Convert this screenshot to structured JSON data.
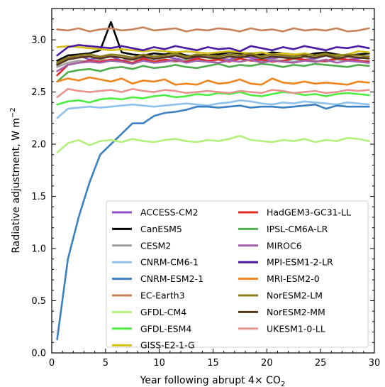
{
  "chart_data": {
    "type": "line",
    "xlabel": "Year following abrupt 4× CO",
    "xlabel_sub": "2",
    "ylabel": "Radiative adjustment, W m",
    "ylabel_sup": "−2",
    "xlim": [
      0,
      30
    ],
    "ylim": [
      0,
      3.3
    ],
    "x_ticks": [
      0,
      5,
      10,
      15,
      20,
      25,
      30
    ],
    "y_ticks": [
      0.0,
      0.5,
      1.0,
      1.5,
      2.0,
      2.5,
      3.0
    ],
    "x_tick_labels": [
      "0",
      "5",
      "10",
      "15",
      "20",
      "25",
      "30"
    ],
    "y_tick_labels": [
      "0.0",
      "0.5",
      "1.0",
      "1.5",
      "2.0",
      "2.5",
      "3.0"
    ],
    "legend_placement": "lower-right",
    "grid": false,
    "x": [
      0.5,
      1.5,
      2.5,
      3.5,
      4.5,
      5.5,
      6.5,
      7.5,
      8.5,
      9.5,
      10.5,
      11.5,
      12.5,
      13.5,
      14.5,
      15.5,
      16.5,
      17.5,
      18.5,
      19.5,
      20.5,
      21.5,
      22.5,
      23.5,
      24.5,
      25.5,
      26.5,
      27.5,
      28.5,
      29.5
    ],
    "series": [
      {
        "name": "ACCESS-CM2",
        "color": "#8c4fc4",
        "values": [
          2.77,
          2.82,
          2.85,
          2.81,
          2.83,
          2.84,
          2.8,
          2.82,
          2.83,
          2.81,
          2.84,
          2.82,
          2.8,
          2.83,
          2.85,
          2.82,
          2.81,
          2.84,
          2.83,
          2.8,
          2.82,
          2.84,
          2.83,
          2.81,
          2.82,
          2.85,
          2.83,
          2.81,
          2.82,
          2.84
        ]
      },
      {
        "name": "CanESM5",
        "color": "#000000",
        "values": [
          2.8,
          2.85,
          2.86,
          2.87,
          2.9,
          3.17,
          2.88,
          2.86,
          2.85,
          2.87,
          2.86,
          2.88,
          2.85,
          2.84,
          2.87,
          2.86,
          2.88,
          2.87,
          2.85,
          2.86,
          2.88,
          2.87,
          2.86,
          2.85,
          2.87,
          2.88,
          2.86,
          2.85,
          2.86,
          2.87
        ]
      },
      {
        "name": "CESM2",
        "color": "#a0a0a0",
        "values": [
          2.74,
          2.78,
          2.8,
          2.79,
          2.81,
          2.8,
          2.79,
          2.81,
          2.8,
          2.82,
          2.8,
          2.79,
          2.81,
          2.8,
          2.79,
          2.81,
          2.8,
          2.82,
          2.8,
          2.79,
          2.81,
          2.8,
          2.79,
          2.81,
          2.8,
          2.79,
          2.81,
          2.8,
          2.79,
          2.8
        ]
      },
      {
        "name": "CNRM-CM6-1",
        "color": "#8fc1ea",
        "values": [
          2.25,
          2.34,
          2.35,
          2.36,
          2.35,
          2.36,
          2.37,
          2.38,
          2.37,
          2.36,
          2.37,
          2.38,
          2.39,
          2.38,
          2.37,
          2.39,
          2.4,
          2.42,
          2.41,
          2.39,
          2.38,
          2.4,
          2.39,
          2.41,
          2.4,
          2.39,
          2.38,
          2.4,
          2.39,
          2.38
        ]
      },
      {
        "name": "CNRM-ESM2-1",
        "color": "#3b80c0",
        "values": [
          0.13,
          0.9,
          1.3,
          1.63,
          1.9,
          2.0,
          2.1,
          2.2,
          2.2,
          2.27,
          2.3,
          2.31,
          2.33,
          2.36,
          2.36,
          2.35,
          2.36,
          2.37,
          2.35,
          2.36,
          2.36,
          2.35,
          2.36,
          2.37,
          2.38,
          2.34,
          2.37,
          2.36,
          2.36,
          2.36
        ]
      },
      {
        "name": "EC-Earth3",
        "color": "#c8825a",
        "values": [
          3.1,
          3.09,
          3.11,
          3.08,
          3.1,
          3.11,
          3.09,
          3.1,
          3.12,
          3.09,
          3.1,
          3.11,
          3.08,
          3.1,
          3.09,
          3.11,
          3.1,
          3.08,
          3.11,
          3.09,
          3.1,
          3.08,
          3.11,
          3.09,
          3.1,
          3.09,
          3.11,
          3.08,
          3.09,
          3.11
        ]
      },
      {
        "name": "GFDL-CM4",
        "color": "#b4f07c",
        "values": [
          1.92,
          2.01,
          2.04,
          1.99,
          2.03,
          2.04,
          2.02,
          2.05,
          2.03,
          2.02,
          2.04,
          2.05,
          2.03,
          2.02,
          2.04,
          2.03,
          2.05,
          2.08,
          2.04,
          2.03,
          2.02,
          2.04,
          2.03,
          2.05,
          2.02,
          2.04,
          2.03,
          2.06,
          2.05,
          2.03
        ]
      },
      {
        "name": "GFDL-ESM4",
        "color": "#4ded40",
        "values": [
          2.38,
          2.41,
          2.42,
          2.4,
          2.43,
          2.44,
          2.43,
          2.45,
          2.44,
          2.46,
          2.47,
          2.45,
          2.46,
          2.48,
          2.47,
          2.49,
          2.48,
          2.5,
          2.47,
          2.46,
          2.48,
          2.5,
          2.49,
          2.47,
          2.48,
          2.46,
          2.48,
          2.49,
          2.48,
          2.47
        ]
      },
      {
        "name": "GISS-E2-1-G",
        "color": "#d6c01a",
        "values": [
          2.93,
          2.94,
          2.93,
          2.92,
          2.91,
          2.9,
          2.91,
          2.9,
          2.89,
          2.9,
          2.89,
          2.88,
          2.89,
          2.88,
          2.87,
          2.88,
          2.89,
          2.88,
          2.87,
          2.88,
          2.86,
          2.87,
          2.86,
          2.87,
          2.85,
          2.86,
          2.85,
          2.86,
          2.89,
          2.88
        ]
      },
      {
        "name": "HadGEM3-GC31-LL",
        "color": "#e02a24",
        "values": [
          2.66,
          2.76,
          2.78,
          2.8,
          2.79,
          2.81,
          2.8,
          2.78,
          2.82,
          2.79,
          2.81,
          2.8,
          2.79,
          2.82,
          2.8,
          2.81,
          2.79,
          2.82,
          2.8,
          2.81,
          2.79,
          2.8,
          2.82,
          2.81,
          2.79,
          2.8,
          2.82,
          2.81,
          2.8,
          2.79
        ]
      },
      {
        "name": "IPSL-CM6A-LR",
        "color": "#4fae4c",
        "values": [
          2.6,
          2.69,
          2.71,
          2.72,
          2.7,
          2.73,
          2.74,
          2.72,
          2.75,
          2.73,
          2.74,
          2.76,
          2.74,
          2.73,
          2.75,
          2.77,
          2.74,
          2.76,
          2.75,
          2.77,
          2.76,
          2.74,
          2.76,
          2.75,
          2.77,
          2.76,
          2.75,
          2.74,
          2.76,
          2.75
        ]
      },
      {
        "name": "MIROC6",
        "color": "#a35fa8",
        "values": [
          2.7,
          2.76,
          2.78,
          2.79,
          2.78,
          2.8,
          2.79,
          2.77,
          2.8,
          2.78,
          2.79,
          2.81,
          2.78,
          2.8,
          2.79,
          2.78,
          2.8,
          2.79,
          2.81,
          2.78,
          2.8,
          2.79,
          2.78,
          2.8,
          2.79,
          2.81,
          2.78,
          2.8,
          2.79,
          2.78
        ]
      },
      {
        "name": "MPI-ESM1-2-LR",
        "color": "#4a1aa0",
        "values": [
          2.85,
          2.93,
          2.95,
          2.94,
          2.93,
          2.92,
          2.94,
          2.92,
          2.9,
          2.93,
          2.91,
          2.94,
          2.92,
          2.9,
          2.93,
          2.91,
          2.92,
          2.89,
          2.94,
          2.92,
          2.9,
          2.93,
          2.91,
          2.94,
          2.92,
          2.9,
          2.93,
          2.92,
          2.94,
          2.92
        ]
      },
      {
        "name": "MRI-ESM2-0",
        "color": "#f0841c",
        "values": [
          2.6,
          2.63,
          2.61,
          2.64,
          2.62,
          2.6,
          2.63,
          2.58,
          2.61,
          2.6,
          2.62,
          2.57,
          2.58,
          2.57,
          2.61,
          2.58,
          2.59,
          2.62,
          2.58,
          2.57,
          2.63,
          2.59,
          2.58,
          2.6,
          2.58,
          2.59,
          2.58,
          2.57,
          2.6,
          2.59
        ]
      },
      {
        "name": "NorESM2-LM",
        "color": "#8a7b1c",
        "values": [
          2.78,
          2.83,
          2.85,
          2.86,
          2.84,
          2.86,
          2.85,
          2.83,
          2.86,
          2.84,
          2.85,
          2.87,
          2.84,
          2.86,
          2.85,
          2.84,
          2.86,
          2.85,
          2.87,
          2.84,
          2.86,
          2.85,
          2.84,
          2.86,
          2.85,
          2.87,
          2.84,
          2.86,
          2.85,
          2.84
        ]
      },
      {
        "name": "NorESM2-MM",
        "color": "#553a1a",
        "values": [
          2.76,
          2.81,
          2.83,
          2.84,
          2.82,
          2.84,
          2.83,
          2.81,
          2.84,
          2.82,
          2.83,
          2.85,
          2.82,
          2.84,
          2.83,
          2.82,
          2.84,
          2.83,
          2.85,
          2.82,
          2.84,
          2.83,
          2.82,
          2.84,
          2.83,
          2.85,
          2.82,
          2.84,
          2.83,
          2.82
        ]
      },
      {
        "name": "UKESM1-0-LL",
        "color": "#e8938f",
        "values": [
          2.45,
          2.53,
          2.51,
          2.5,
          2.51,
          2.52,
          2.5,
          2.53,
          2.51,
          2.5,
          2.52,
          2.51,
          2.49,
          2.5,
          2.51,
          2.5,
          2.49,
          2.51,
          2.5,
          2.49,
          2.52,
          2.51,
          2.49,
          2.5,
          2.51,
          2.49,
          2.5,
          2.52,
          2.51,
          2.52
        ]
      }
    ]
  }
}
